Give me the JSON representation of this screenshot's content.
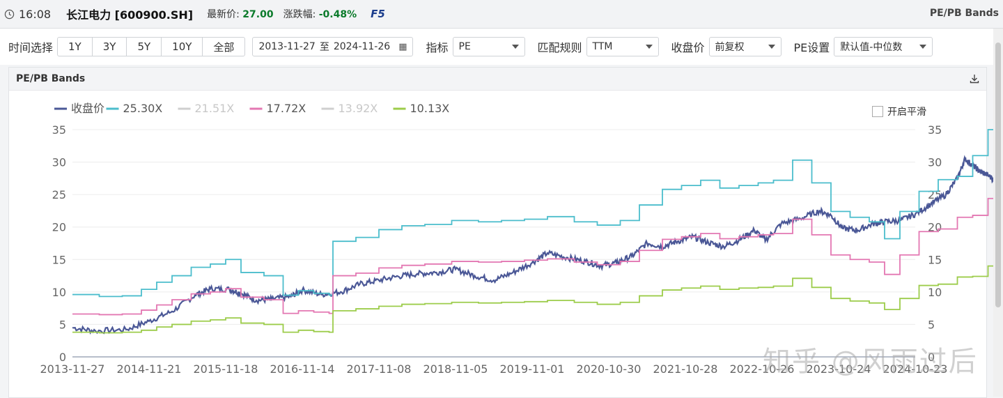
{
  "header": {
    "time": "16:08",
    "stock": "长江电力 [600900.SH]",
    "price_label": "最新价:",
    "price": "27.00",
    "change_label": "涨跌幅:",
    "change": "-0.48%",
    "f5": "F5",
    "band_title": "PE/PB Bands"
  },
  "controls": {
    "time_label": "时间选择",
    "ranges": [
      "1Y",
      "3Y",
      "5Y",
      "10Y",
      "全部"
    ],
    "date_start": "2013-11-27",
    "date_sep": "至",
    "date_end": "2024-11-26",
    "indicator_label": "指标",
    "indicator": "PE",
    "rule_label": "匹配规则",
    "rule": "TTM",
    "close_label": "收盘价",
    "close": "前复权",
    "pe_label": "PE设置",
    "pe": "默认值-中位数"
  },
  "panel": {
    "title": "PE/PB Bands",
    "smooth_label": "开启平滑"
  },
  "watermark": "知乎 @风雨过后",
  "colors": {
    "price": "#4a5796",
    "b1": "#4bbdcc",
    "b2": "#c8c8c8",
    "b3": "#e377b2",
    "b4": "#c8c8c8",
    "b5": "#9ccc4a"
  },
  "chart_data": {
    "type": "line",
    "x_labels": [
      "2013-11-27",
      "2014-11-21",
      "2015-11-18",
      "2016-11-14",
      "2017-11-08",
      "2018-11-05",
      "2019-11-01",
      "2020-10-30",
      "2021-10-28",
      "2022-10-26",
      "2023-10-24",
      "2024-10-23"
    ],
    "x_range": [
      "2013-11-27",
      "2024-11-26"
    ],
    "ylim": [
      0,
      35
    ],
    "y_ticks": [
      0,
      5,
      10,
      15,
      20,
      25,
      30,
      35
    ],
    "legend_position": "top-left",
    "series": [
      {
        "name": "收盘价",
        "color": "#4a5796",
        "visible": true,
        "points": [
          [
            0,
            4.5
          ],
          [
            0.3,
            4.0
          ],
          [
            0.7,
            4.2
          ],
          [
            1.0,
            5.5
          ],
          [
            1.3,
            7.0
          ],
          [
            1.6,
            9.5
          ],
          [
            1.8,
            10.5
          ],
          [
            2.05,
            10.4
          ],
          [
            2.2,
            9.8
          ],
          [
            2.4,
            8.7
          ],
          [
            2.6,
            8.9
          ],
          [
            2.85,
            9.3
          ],
          [
            3.0,
            10.3
          ],
          [
            3.25,
            9.6
          ],
          [
            3.5,
            10.0
          ],
          [
            3.75,
            11.2
          ],
          [
            4.0,
            11.8
          ],
          [
            4.25,
            12.4
          ],
          [
            4.5,
            12.8
          ],
          [
            4.75,
            13.0
          ],
          [
            5.0,
            13.5
          ],
          [
            5.25,
            12.5
          ],
          [
            5.5,
            11.8
          ],
          [
            5.75,
            13.0
          ],
          [
            6.0,
            14.5
          ],
          [
            6.2,
            16.0
          ],
          [
            6.45,
            15.3
          ],
          [
            6.7,
            14.7
          ],
          [
            6.9,
            14.0
          ],
          [
            7.1,
            14.5
          ],
          [
            7.3,
            15.5
          ],
          [
            7.5,
            17.5
          ],
          [
            7.7,
            17.0
          ],
          [
            7.9,
            17.8
          ],
          [
            8.1,
            18.5
          ],
          [
            8.3,
            17.6
          ],
          [
            8.5,
            17.0
          ],
          [
            8.7,
            18.0
          ],
          [
            8.9,
            19.5
          ],
          [
            9.05,
            18.0
          ],
          [
            9.25,
            20.5
          ],
          [
            9.5,
            21.3
          ],
          [
            9.75,
            22.5
          ],
          [
            9.9,
            21.8
          ],
          [
            10.05,
            19.8
          ],
          [
            10.25,
            19.5
          ],
          [
            10.45,
            20.5
          ],
          [
            10.6,
            20.8
          ],
          [
            10.8,
            21.0
          ],
          [
            11.0,
            22.0
          ],
          [
            11.2,
            23.5
          ],
          [
            11.4,
            25.0
          ],
          [
            11.55,
            27.5
          ],
          [
            11.65,
            30.5
          ],
          [
            11.75,
            29.5
          ],
          [
            11.85,
            28.5
          ],
          [
            11.95,
            28.0
          ],
          [
            12.05,
            27.0
          ]
        ]
      },
      {
        "name": "25.30X",
        "color": "#4bbdcc",
        "visible": true,
        "step": [
          [
            0,
            9.6
          ],
          [
            0.35,
            9.3
          ],
          [
            0.65,
            9.4
          ],
          [
            0.9,
            10.4
          ],
          [
            1.1,
            11.5
          ],
          [
            1.3,
            12.5
          ],
          [
            1.55,
            13.8
          ],
          [
            1.8,
            14.3
          ],
          [
            2.0,
            15.0
          ],
          [
            2.2,
            13.0
          ],
          [
            2.5,
            12.5
          ],
          [
            2.75,
            9.5
          ],
          [
            2.95,
            10.2
          ],
          [
            3.15,
            9.8
          ],
          [
            3.35,
            9.5
          ],
          [
            3.4,
            17.8
          ],
          [
            3.7,
            18.4
          ],
          [
            4.0,
            19.6
          ],
          [
            4.3,
            20.2
          ],
          [
            4.6,
            20.4
          ],
          [
            4.95,
            21.0
          ],
          [
            5.3,
            20.8
          ],
          [
            5.6,
            21.0
          ],
          [
            5.9,
            21.2
          ],
          [
            6.2,
            21.6
          ],
          [
            6.55,
            20.8
          ],
          [
            6.85,
            20.3
          ],
          [
            7.15,
            21.0
          ],
          [
            7.4,
            23.4
          ],
          [
            7.7,
            25.8
          ],
          [
            7.95,
            26.4
          ],
          [
            8.2,
            27.2
          ],
          [
            8.45,
            26.0
          ],
          [
            8.7,
            26.4
          ],
          [
            8.95,
            26.8
          ],
          [
            9.15,
            27.2
          ],
          [
            9.4,
            30.3
          ],
          [
            9.65,
            26.8
          ],
          [
            9.9,
            22.4
          ],
          [
            10.15,
            21.5
          ],
          [
            10.4,
            20.8
          ],
          [
            10.6,
            18.2
          ],
          [
            10.8,
            22.4
          ],
          [
            11.05,
            25.5
          ],
          [
            11.3,
            27.3
          ],
          [
            11.55,
            27.8
          ],
          [
            11.75,
            31.0
          ],
          [
            11.95,
            35.0
          ],
          [
            12.1,
            35.0
          ]
        ]
      },
      {
        "name": "21.51X",
        "color": "#c8c8c8",
        "visible": false
      },
      {
        "name": "17.72X",
        "color": "#e377b2",
        "visible": true,
        "step": [
          [
            0,
            6.6
          ],
          [
            0.35,
            6.5
          ],
          [
            0.65,
            6.6
          ],
          [
            0.9,
            7.2
          ],
          [
            1.1,
            8.0
          ],
          [
            1.3,
            8.8
          ],
          [
            1.55,
            9.7
          ],
          [
            1.8,
            10.0
          ],
          [
            2.0,
            10.5
          ],
          [
            2.2,
            9.2
          ],
          [
            2.5,
            8.8
          ],
          [
            2.75,
            6.7
          ],
          [
            2.95,
            7.1
          ],
          [
            3.15,
            6.9
          ],
          [
            3.35,
            6.7
          ],
          [
            3.4,
            12.5
          ],
          [
            3.7,
            12.9
          ],
          [
            4.0,
            13.7
          ],
          [
            4.3,
            14.1
          ],
          [
            4.6,
            14.3
          ],
          [
            4.95,
            14.7
          ],
          [
            5.3,
            14.6
          ],
          [
            5.6,
            14.7
          ],
          [
            5.9,
            14.9
          ],
          [
            6.2,
            15.1
          ],
          [
            6.55,
            14.6
          ],
          [
            6.85,
            14.2
          ],
          [
            7.15,
            14.7
          ],
          [
            7.4,
            16.4
          ],
          [
            7.7,
            18.1
          ],
          [
            7.95,
            18.5
          ],
          [
            8.2,
            19.0
          ],
          [
            8.45,
            18.2
          ],
          [
            8.7,
            18.5
          ],
          [
            8.95,
            18.8
          ],
          [
            9.15,
            19.0
          ],
          [
            9.4,
            21.2
          ],
          [
            9.65,
            18.8
          ],
          [
            9.9,
            15.7
          ],
          [
            10.15,
            15.0
          ],
          [
            10.4,
            14.6
          ],
          [
            10.6,
            12.7
          ],
          [
            10.8,
            15.7
          ],
          [
            11.05,
            19.3
          ],
          [
            11.3,
            19.7
          ],
          [
            11.55,
            21.5
          ],
          [
            11.75,
            21.8
          ],
          [
            11.95,
            24.4
          ],
          [
            12.1,
            24.4
          ]
        ]
      },
      {
        "name": "13.92X",
        "color": "#c8c8c8",
        "visible": false
      },
      {
        "name": "10.13X",
        "color": "#9ccc4a",
        "visible": true,
        "step": [
          [
            0,
            3.8
          ],
          [
            0.35,
            3.7
          ],
          [
            0.65,
            3.8
          ],
          [
            0.9,
            4.1
          ],
          [
            1.1,
            4.6
          ],
          [
            1.3,
            5.0
          ],
          [
            1.55,
            5.5
          ],
          [
            1.8,
            5.7
          ],
          [
            2.0,
            6.0
          ],
          [
            2.2,
            5.2
          ],
          [
            2.5,
            5.0
          ],
          [
            2.75,
            3.8
          ],
          [
            2.95,
            4.1
          ],
          [
            3.15,
            3.9
          ],
          [
            3.35,
            3.8
          ],
          [
            3.4,
            7.1
          ],
          [
            3.7,
            7.4
          ],
          [
            4.0,
            7.8
          ],
          [
            4.3,
            8.1
          ],
          [
            4.6,
            8.2
          ],
          [
            4.95,
            8.4
          ],
          [
            5.3,
            8.3
          ],
          [
            5.6,
            8.4
          ],
          [
            5.9,
            8.5
          ],
          [
            6.2,
            8.7
          ],
          [
            6.55,
            8.4
          ],
          [
            6.85,
            8.1
          ],
          [
            7.15,
            8.4
          ],
          [
            7.4,
            9.4
          ],
          [
            7.7,
            10.3
          ],
          [
            7.95,
            10.6
          ],
          [
            8.2,
            10.9
          ],
          [
            8.45,
            10.4
          ],
          [
            8.7,
            10.6
          ],
          [
            8.95,
            10.7
          ],
          [
            9.15,
            10.9
          ],
          [
            9.4,
            12.1
          ],
          [
            9.65,
            10.7
          ],
          [
            9.9,
            9.0
          ],
          [
            10.15,
            8.6
          ],
          [
            10.4,
            8.3
          ],
          [
            10.6,
            7.3
          ],
          [
            10.8,
            9.0
          ],
          [
            11.05,
            11.0
          ],
          [
            11.3,
            11.2
          ],
          [
            11.55,
            12.3
          ],
          [
            11.75,
            12.4
          ],
          [
            11.95,
            14.0
          ],
          [
            12.1,
            14.0
          ]
        ]
      }
    ]
  }
}
